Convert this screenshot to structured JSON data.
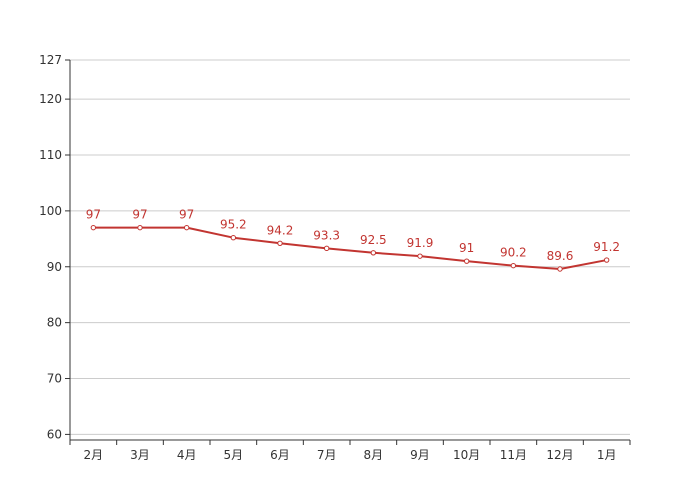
{
  "chart_data": {
    "type": "line",
    "title": "",
    "xlabel": "",
    "ylabel": "",
    "categories": [
      "2月",
      "3月",
      "4月",
      "5月",
      "6月",
      "7月",
      "8月",
      "9月",
      "10月",
      "11月",
      "12月",
      "1月"
    ],
    "series": [
      {
        "values": [
          97,
          97,
          97,
          95.2,
          94.2,
          93.3,
          92.5,
          91.9,
          91,
          90.2,
          89.6,
          91.2
        ],
        "color": "#c23531",
        "data_labels": [
          "97",
          "97",
          "97",
          "95.2",
          "94.2",
          "93.3",
          "92.5",
          "91.9",
          "91",
          "90.2",
          "89.6",
          "91.2"
        ]
      }
    ],
    "ylim": [
      59,
      127
    ],
    "y_ticks": [
      60,
      70,
      80,
      90,
      100,
      110,
      120,
      127
    ],
    "y_tick_labels": [
      "60",
      "70",
      "80",
      "90",
      "100",
      "110",
      "120",
      "127"
    ],
    "grid": true,
    "legend": "none",
    "colors": {
      "line": "#c23531",
      "grid": "#cccccc",
      "axis": "#333333",
      "marker_fill": "#ffffff"
    }
  }
}
